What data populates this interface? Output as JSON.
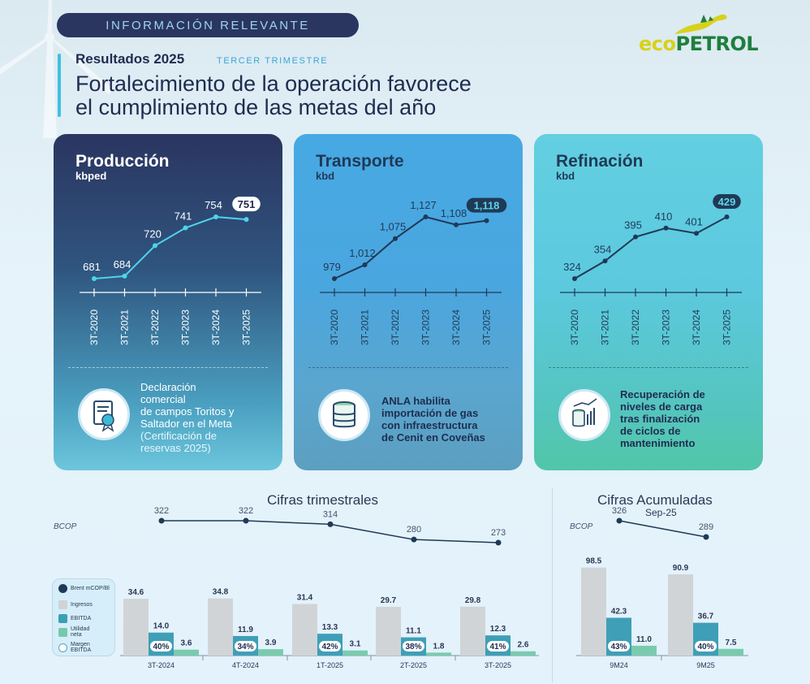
{
  "header": {
    "pill_label": "INFORMACIÓN RELEVANTE",
    "results_label": "Resultados 2025",
    "quarter_label": "TERCER TRIMESTRE",
    "headline_line1": "Fortalecimiento de la operación favorece",
    "headline_line2": "el cumplimiento de las metas del año",
    "logo_eco": "eco",
    "logo_petrol": "PETROL"
  },
  "cards": {
    "production": {
      "title": "Producción",
      "unit": "kbped",
      "note_lines": [
        "Declaración",
        "comercial",
        "de campos Toritos y",
        "Saltador en el Meta"
      ],
      "note_sub_lines": [
        "(Certificación de",
        "reservas 2025)"
      ],
      "icon": "certificate-icon"
    },
    "transport": {
      "title": "Transporte",
      "unit": "kbd",
      "note_lines": [
        "ANLA habilita",
        "importación de gas",
        "con infraestructura",
        "de Cenit en Coveñas"
      ],
      "icon": "gas-tank-icon"
    },
    "refining": {
      "title": "Refinación",
      "unit": "kbd",
      "note_lines": [
        "Recuperación de",
        "niveles de carga",
        "tras finalización",
        "de ciclos de",
        "mantenimiento"
      ],
      "icon": "refinery-chart-icon"
    }
  },
  "sections": {
    "quarterly_title": "Cifras trimestrales",
    "accumulated_title": "Cifras Acumuladas",
    "accumulated_sub": "Sep-25",
    "bcop_label": "BCOP"
  },
  "legend": [
    {
      "label": "Brent mCOP/Bl",
      "color": "#1f3a56",
      "kind": "dot"
    },
    {
      "label": "Ingresos",
      "color": "#cfd3d6",
      "kind": "square"
    },
    {
      "label": "EBITDA",
      "color": "#3c9fb6",
      "kind": "square"
    },
    {
      "label": "Utilidad neta",
      "color": "#75c9ab",
      "kind": "square"
    },
    {
      "label": "Margen EBITDA",
      "color": "#ffffff",
      "kind": "ring"
    }
  ],
  "colors": {
    "revenue": "#d1d4d7",
    "ebitda": "#3e9fb7",
    "net_income": "#7acbad",
    "line": "#1f3a56"
  },
  "chart_data": [
    {
      "type": "line",
      "title": "Producción",
      "ylabel": "kbped",
      "categories": [
        "3T-2020",
        "3T-2021",
        "3T-2022",
        "3T-2023",
        "3T-2024",
        "3T-2025"
      ],
      "values": [
        681,
        684,
        720,
        741,
        754,
        751
      ],
      "labels": [
        "681",
        "684",
        "720",
        "741",
        "754",
        "751"
      ],
      "highlight_last": true
    },
    {
      "type": "line",
      "title": "Transporte",
      "ylabel": "kbd",
      "categories": [
        "3T-2020",
        "3T-2021",
        "3T-2022",
        "3T-2023",
        "3T-2024",
        "3T-2025"
      ],
      "values": [
        979,
        1012,
        1075,
        1127,
        1108,
        1118
      ],
      "labels": [
        "979",
        "1,012",
        "1,075",
        "1,127",
        "1,108",
        "1,118"
      ],
      "highlight_last": true
    },
    {
      "type": "line",
      "title": "Refinación",
      "ylabel": "kbd",
      "categories": [
        "3T-2020",
        "3T-2021",
        "3T-2022",
        "3T-2023",
        "3T-2024",
        "3T-2025"
      ],
      "values": [
        324,
        354,
        395,
        410,
        401,
        429
      ],
      "labels": [
        "324",
        "354",
        "395",
        "410",
        "401",
        "429"
      ],
      "highlight_last": true
    },
    {
      "type": "bar",
      "title": "Cifras trimestrales",
      "ylabel": "BCOP",
      "categories": [
        "3T-2024",
        "4T-2024",
        "1T-2025",
        "2T-2025",
        "3T-2025"
      ],
      "series": [
        {
          "name": "Ingresos",
          "values": [
            34.6,
            34.8,
            31.4,
            29.7,
            29.8
          ]
        },
        {
          "name": "EBITDA",
          "values": [
            14.0,
            11.9,
            13.3,
            11.1,
            12.3
          ]
        },
        {
          "name": "Utilidad neta",
          "values": [
            3.6,
            3.9,
            3.1,
            1.8,
            2.6
          ]
        }
      ],
      "value_labels": {
        "revenue": [
          "34.6",
          "34.8",
          "31.4",
          "29.7",
          "29.8"
        ],
        "ebitda": [
          "14.0",
          "11.9",
          "13.3",
          "11.1",
          "12.3"
        ],
        "net_income": [
          "3.6",
          "3.9",
          "3.1",
          "1.8",
          "2.6"
        ]
      },
      "margin": [
        "40%",
        "34%",
        "42%",
        "38%",
        "41%"
      ],
      "brent": {
        "name": "Brent mCOP/Bl",
        "values": [
          322,
          322,
          314,
          280,
          273
        ],
        "labels": [
          "322",
          "322",
          "314",
          "280",
          "273"
        ]
      }
    },
    {
      "type": "bar",
      "title": "Cifras Acumuladas",
      "subtitle": "Sep-25",
      "ylabel": "BCOP",
      "categories": [
        "9M24",
        "9M25"
      ],
      "series": [
        {
          "name": "Ingresos",
          "values": [
            98.5,
            90.9
          ]
        },
        {
          "name": "EBITDA",
          "values": [
            42.3,
            36.7
          ]
        },
        {
          "name": "Utilidad neta",
          "values": [
            11.0,
            7.5
          ]
        }
      ],
      "value_labels": {
        "revenue": [
          "98.5",
          "90.9"
        ],
        "ebitda": [
          "42.3",
          "36.7"
        ],
        "net_income": [
          "11.0",
          "7.5"
        ]
      },
      "margin": [
        "43%",
        "40%"
      ],
      "brent": {
        "name": "Brent mCOP/Bl",
        "values": [
          326,
          289
        ],
        "labels": [
          "326",
          "289"
        ]
      }
    }
  ]
}
